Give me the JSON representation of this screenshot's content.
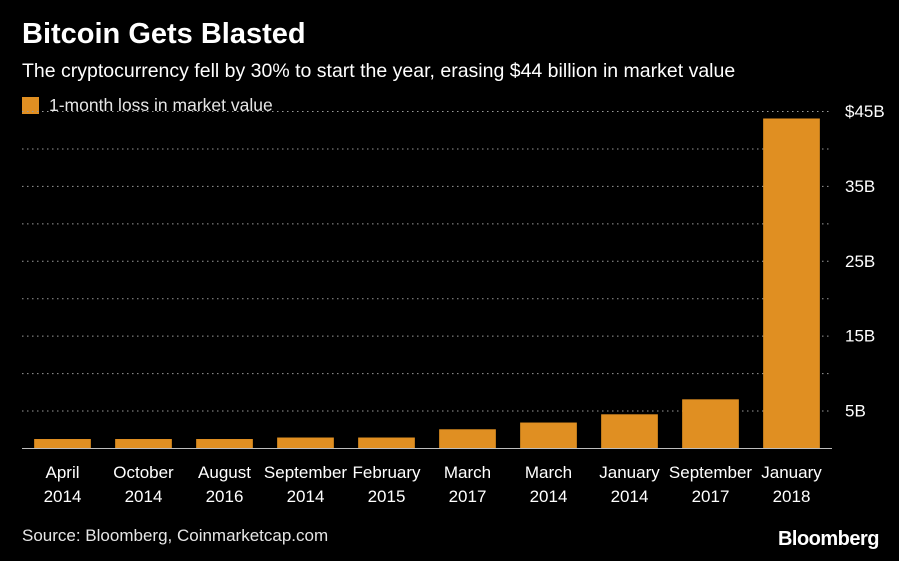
{
  "header": {
    "title": "Bitcoin Gets Blasted",
    "subtitle": "The cryptocurrency fell by 30% to start the year, erasing $44 billion in market value"
  },
  "footer": {
    "source": "Source: Bloomberg, Coinmarketcap.com",
    "brand": "Bloomberg"
  },
  "colors": {
    "background": "#000000",
    "bar": "#e08f22",
    "grid": "#9a9a9a",
    "axis": "#bdbdbd",
    "text": "#ffffff"
  },
  "chart_data": {
    "type": "bar",
    "title": "Bitcoin Gets Blasted",
    "subtitle": "The cryptocurrency fell by 30% to start the year, erasing $44 billion in market value",
    "legend": {
      "entries": [
        "1-month loss in market value"
      ],
      "placement": "top-left"
    },
    "categories": [
      [
        "April",
        "2014"
      ],
      [
        "October",
        "2014"
      ],
      [
        "August",
        "2016"
      ],
      [
        "September",
        "2014"
      ],
      [
        "February",
        "2015"
      ],
      [
        "March",
        "2017"
      ],
      [
        "March",
        "2014"
      ],
      [
        "January",
        "2014"
      ],
      [
        "September",
        "2017"
      ],
      [
        "January",
        "2018"
      ]
    ],
    "series": [
      {
        "name": "1-month loss in market value",
        "values": [
          1.2,
          1.2,
          1.2,
          1.4,
          1.4,
          2.5,
          3.4,
          4.5,
          6.5,
          44
        ]
      }
    ],
    "yticks": [
      5,
      15,
      25,
      35,
      45
    ],
    "ytick_labels": [
      "5B",
      "15B",
      "25B",
      "35B",
      "$45B"
    ],
    "ylim": [
      0,
      45
    ],
    "y_axis_side": "right",
    "grid": "dotted horizontal",
    "xlabel": "",
    "ylabel": ""
  }
}
